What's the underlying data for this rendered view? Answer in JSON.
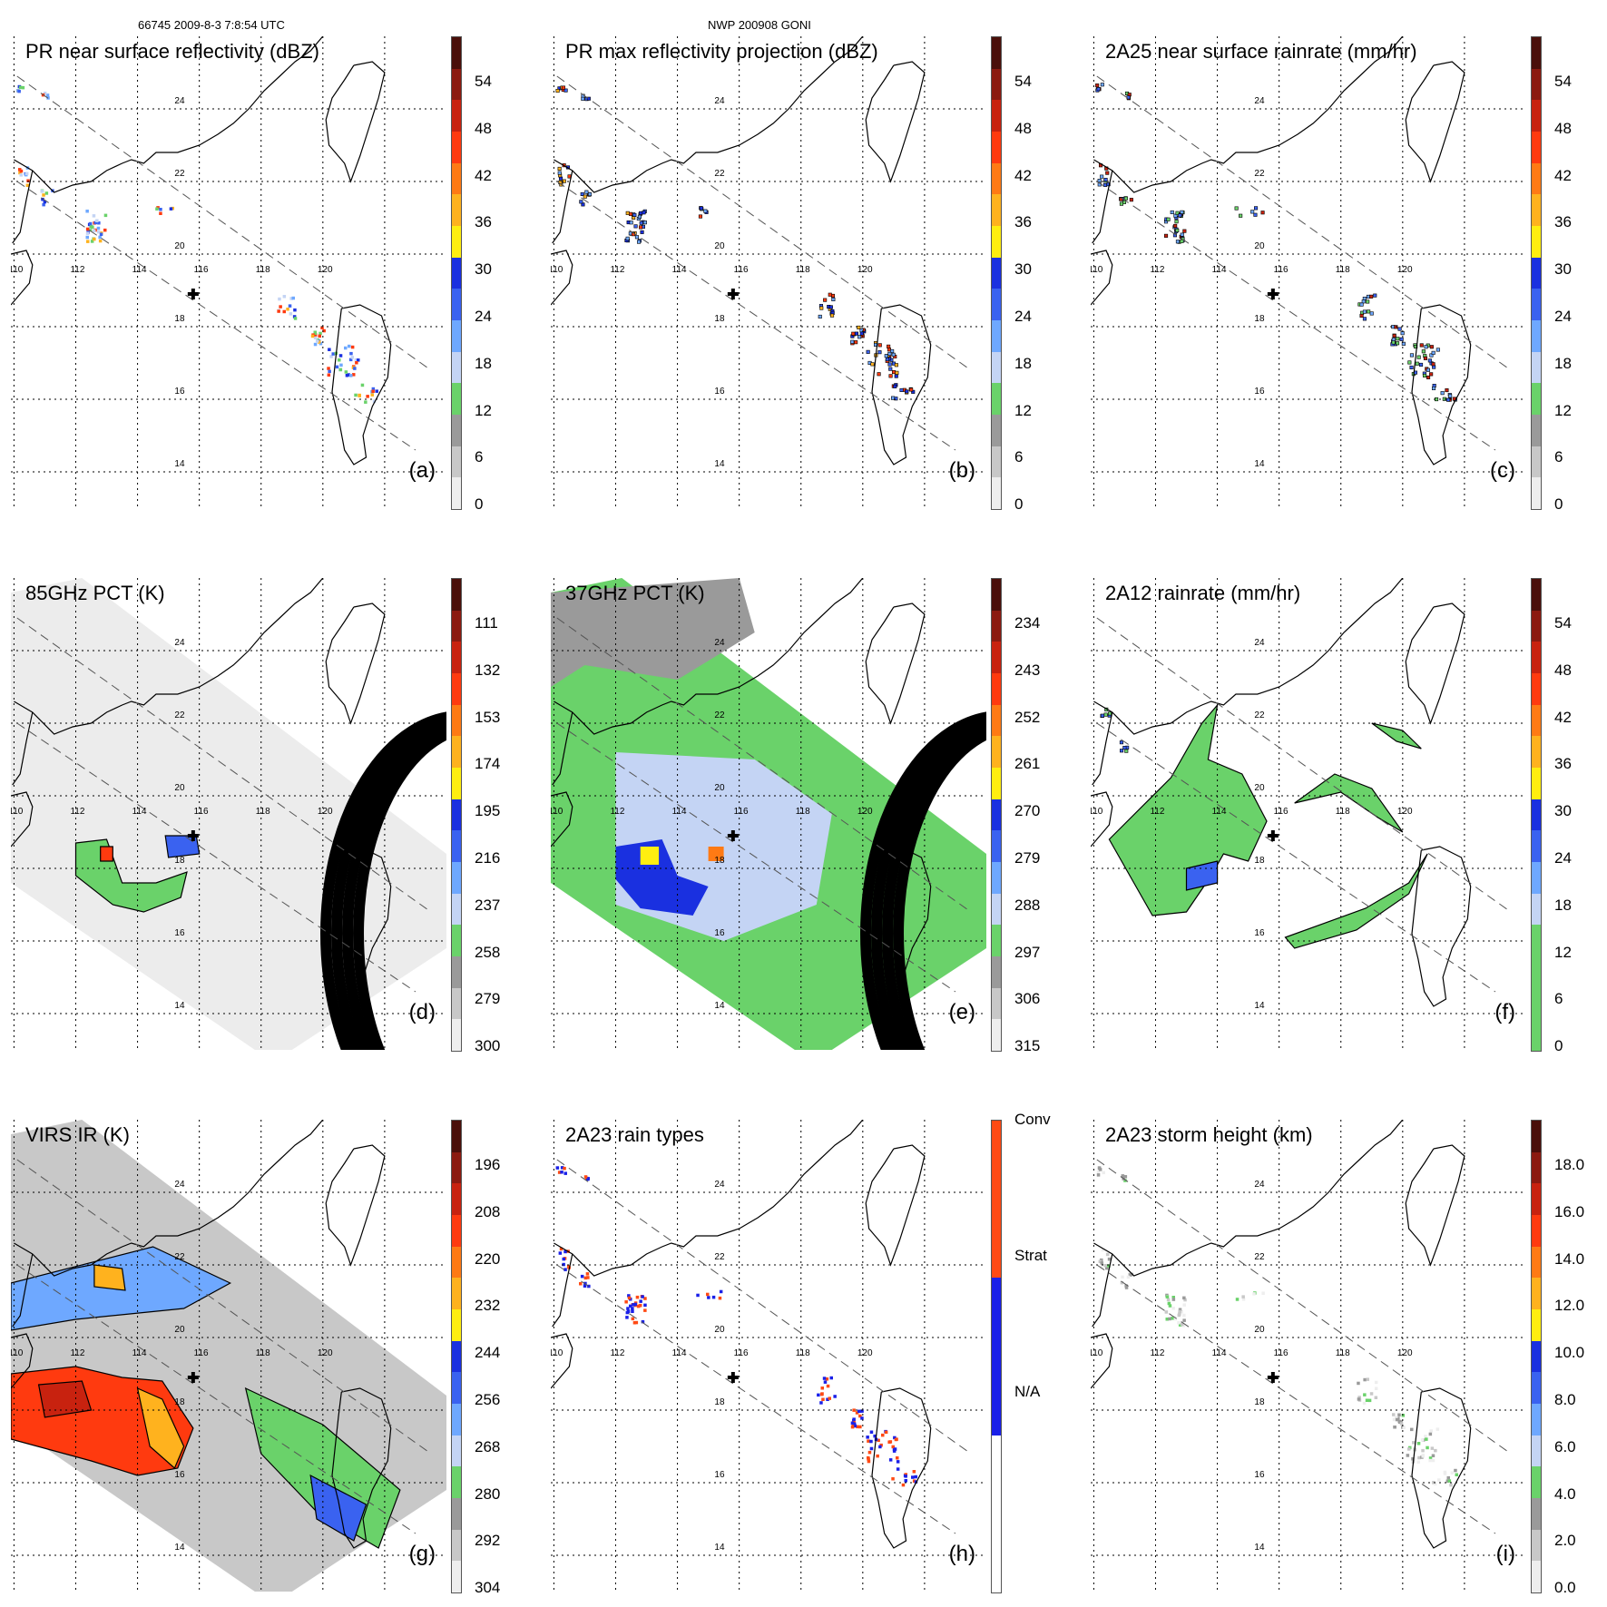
{
  "header": {
    "orbit_time": "66745 2009-8-3 7:8:54 UTC",
    "storm": "NWP 200908 GONI"
  },
  "axes": {
    "lon_labels": [
      "110",
      "112",
      "114",
      "116",
      "118",
      "120"
    ],
    "lat_labels": [
      "24",
      "22",
      "20",
      "18",
      "16",
      "14"
    ]
  },
  "colors": {
    "coast": "#000000",
    "grid": "#000000",
    "swath": "#555555",
    "center_marker": "#000000"
  },
  "panels": [
    {
      "id": "a",
      "title": "PR near surface reflectivity (dBZ)",
      "label": "(a)",
      "ticks": [
        "54",
        "48",
        "42",
        "36",
        "30",
        "24",
        "18",
        "12",
        "6",
        "0"
      ],
      "field": "pr_swath_cells",
      "colorbar": [
        "#4a0f0a",
        "#8b1a10",
        "#c8220f",
        "#ff3a0f",
        "#ff7a14",
        "#ffb21e",
        "#ffee10",
        "#1a30e0",
        "#3a62f0",
        "#6ea8ff",
        "#c4d4f4",
        "#6ad26a",
        "#9a9a9a",
        "#c8c8c8",
        "#eeeeee"
      ]
    },
    {
      "id": "b",
      "title": "PR max reflectivity projection (dBZ)",
      "label": "(b)",
      "ticks": [
        "54",
        "48",
        "42",
        "36",
        "30",
        "24",
        "18",
        "12",
        "6",
        "0"
      ],
      "field": "pr_swath_contours",
      "colorbar": [
        "#4a0f0a",
        "#8b1a10",
        "#c8220f",
        "#ff3a0f",
        "#ff7a14",
        "#ffb21e",
        "#ffee10",
        "#1a30e0",
        "#3a62f0",
        "#6ea8ff",
        "#c4d4f4",
        "#6ad26a",
        "#9a9a9a",
        "#c8c8c8",
        "#eeeeee"
      ]
    },
    {
      "id": "c",
      "title": "2A25 near surface rainrate (mm/hr)",
      "label": "(c)",
      "ticks": [
        "54",
        "48",
        "42",
        "36",
        "30",
        "24",
        "18",
        "12",
        "6",
        "0"
      ],
      "field": "pr_swath_contours",
      "colorbar": [
        "#4a0f0a",
        "#8b1a10",
        "#c8220f",
        "#ff3a0f",
        "#ff7a14",
        "#ffb21e",
        "#ffee10",
        "#1a30e0",
        "#3a62f0",
        "#6ea8ff",
        "#c4d4f4",
        "#6ad26a",
        "#9a9a9a",
        "#c8c8c8",
        "#eeeeee"
      ]
    },
    {
      "id": "d",
      "title": "85GHz PCT (K)",
      "label": "(d)",
      "ticks": [
        "111",
        "132",
        "153",
        "174",
        "195",
        "216",
        "237",
        "258",
        "279",
        "300"
      ],
      "field": "tmi_swath_gray",
      "colorbar": [
        "#4a0f0a",
        "#8b1a10",
        "#c8220f",
        "#ff3a0f",
        "#ff7a14",
        "#ffb21e",
        "#ffee10",
        "#1a30e0",
        "#3a62f0",
        "#6ea8ff",
        "#c4d4f4",
        "#6ad26a",
        "#9a9a9a",
        "#c8c8c8",
        "#eeeeee"
      ]
    },
    {
      "id": "e",
      "title": "37GHz PCT (K)",
      "label": "(e)",
      "ticks": [
        "234",
        "243",
        "252",
        "261",
        "270",
        "279",
        "288",
        "297",
        "306",
        "315"
      ],
      "field": "tmi_swath_green",
      "colorbar": [
        "#4a0f0a",
        "#8b1a10",
        "#c8220f",
        "#ff3a0f",
        "#ff7a14",
        "#ffb21e",
        "#ffee10",
        "#1a30e0",
        "#3a62f0",
        "#6ea8ff",
        "#c4d4f4",
        "#6ad26a",
        "#9a9a9a",
        "#c8c8c8",
        "#eeeeee"
      ]
    },
    {
      "id": "f",
      "title": "2A12 rainrate (mm/hr)",
      "label": "(f)",
      "ticks": [
        "54",
        "48",
        "42",
        "36",
        "30",
        "24",
        "18",
        "12",
        "6",
        "0"
      ],
      "field": "tmi_rain_arc",
      "colorbar": [
        "#4a0f0a",
        "#8b1a10",
        "#c8220f",
        "#ff3a0f",
        "#ff7a14",
        "#ffb21e",
        "#ffee10",
        "#1a30e0",
        "#3a62f0",
        "#6ea8ff",
        "#c4d4f4",
        "#6ad26a",
        "#6ad26a",
        "#6ad26a",
        "#6ad26a"
      ]
    },
    {
      "id": "g",
      "title": "VIRS IR (K)",
      "label": "(g)",
      "ticks": [
        "196",
        "208",
        "220",
        "232",
        "244",
        "256",
        "268",
        "280",
        "292",
        "304"
      ],
      "field": "virs_swath",
      "colorbar": [
        "#4a0f0a",
        "#8b1a10",
        "#c8220f",
        "#ff3a0f",
        "#ff7a14",
        "#ffb21e",
        "#ffee10",
        "#1a30e0",
        "#3a62f0",
        "#6ea8ff",
        "#c4d4f4",
        "#6ad26a",
        "#9a9a9a",
        "#c8c8c8",
        "#eeeeee"
      ]
    },
    {
      "id": "h",
      "title": "2A23 rain types",
      "label": "(h)",
      "ticks": [
        "Conv",
        "Strat",
        "N/A"
      ],
      "field": "rain_types",
      "colorbar": [
        "#ff4a14",
        "#1a20e8",
        "#ffffff"
      ]
    },
    {
      "id": "i",
      "title": "2A23 storm height (km)",
      "label": "(i)",
      "ticks": [
        "18.0",
        "16.0",
        "14.0",
        "12.0",
        "10.0",
        "8.0",
        "6.0",
        "4.0",
        "2.0",
        "0.0"
      ],
      "field": "storm_height",
      "colorbar": [
        "#4a0f0a",
        "#8b1a10",
        "#c8220f",
        "#ff3a0f",
        "#ff7a14",
        "#ffb21e",
        "#ffee10",
        "#1a30e0",
        "#3a62f0",
        "#6ea8ff",
        "#c4d4f4",
        "#6ad26a",
        "#9a9a9a",
        "#c8c8c8",
        "#eeeeee"
      ]
    }
  ]
}
